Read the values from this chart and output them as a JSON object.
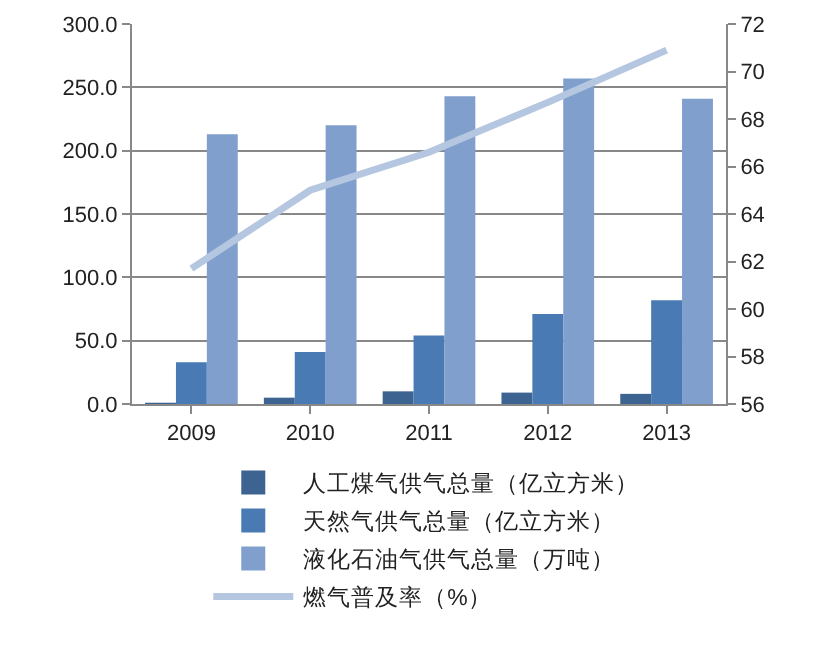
{
  "chart_data": {
    "type": "bar",
    "categories": [
      "2009",
      "2010",
      "2011",
      "2012",
      "2013"
    ],
    "series": [
      {
        "name": "人工煤气供气总量（亿立方米）",
        "color": "#3d6390",
        "values": [
          1,
          5,
          10,
          9,
          8
        ]
      },
      {
        "name": "天然气供气总量（亿立方米）",
        "color": "#4a7ab4",
        "values": [
          33,
          41,
          54,
          71,
          82
        ]
      },
      {
        "name": "液化石油气供气总量（万吨）",
        "color": "#809fcc",
        "values": [
          213,
          220,
          243,
          257,
          241
        ]
      },
      {
        "name": "燃气普及率（%）",
        "type": "line",
        "axis": "y2",
        "color": "#b4c6e0",
        "values": [
          61.7,
          65.0,
          66.6,
          68.7,
          70.9
        ]
      }
    ],
    "ylim": [
      0,
      300
    ],
    "yticks": [
      {
        "value": 0,
        "label": "0.0"
      },
      {
        "value": 50,
        "label": "50.0"
      },
      {
        "value": 100,
        "label": "100.0"
      },
      {
        "value": 150,
        "label": "150.0"
      },
      {
        "value": 200,
        "label": "200.0"
      },
      {
        "value": 250,
        "label": "250.0"
      },
      {
        "value": 300,
        "label": "300.0"
      }
    ],
    "y2lim": [
      56,
      72
    ],
    "y2ticks": [
      56,
      58,
      60,
      62,
      64,
      66,
      68,
      70,
      72
    ],
    "grid": "y",
    "legend": "bottom",
    "marker": "none"
  }
}
